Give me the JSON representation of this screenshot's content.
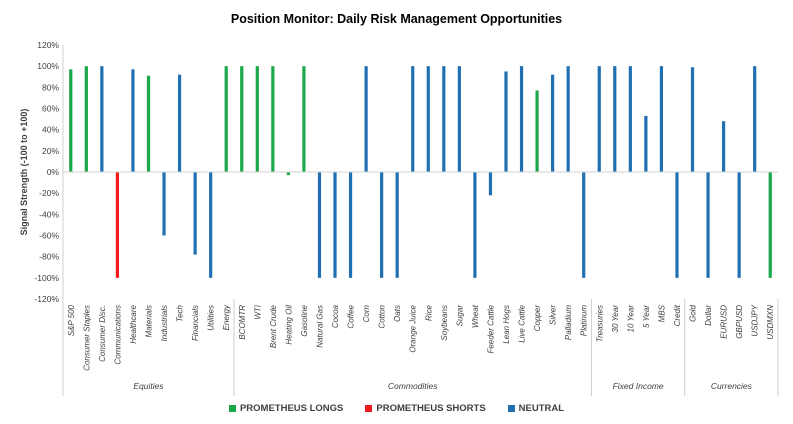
{
  "chart_data": {
    "type": "bar",
    "title": "Position Monitor: Daily Risk Management Opportunities",
    "ylabel": "Signal Strength (-100 to +100)",
    "ylim": [
      -120,
      120
    ],
    "yticks": [
      -120,
      -100,
      -80,
      -60,
      -40,
      -20,
      0,
      20,
      40,
      60,
      80,
      100,
      120
    ],
    "ytick_suffix": "%",
    "grid": false,
    "legend_position": "bottom",
    "colors": {
      "longs": "#1ba84a",
      "shorts": "#ee1c1c",
      "neutral": "#1f6fb2"
    },
    "series": [
      {
        "name": "PROMETHEUS LONGS",
        "key": "longs"
      },
      {
        "name": "PROMETHEUS SHORTS",
        "key": "shorts"
      },
      {
        "name": "NEUTRAL",
        "key": "neutral"
      }
    ],
    "groups": [
      {
        "label": "Equities",
        "start": 0,
        "end": 10
      },
      {
        "label": "Commodities",
        "start": 11,
        "end": 33
      },
      {
        "label": "Fixed Income",
        "start": 34,
        "end": 39
      },
      {
        "label": "Currencies",
        "start": 40,
        "end": 45
      }
    ],
    "categories": [
      "S&P 500",
      "Consumer Staples",
      "Consumer Disc.",
      "Communications",
      "Healthcare",
      "Materials",
      "Industrials",
      "Tech",
      "Financials",
      "Utilities",
      "Energy",
      "BCOMTR",
      "WTI",
      "Brent Crude",
      "Heating Oil",
      "Gasoline",
      "Natural Gas",
      "Cocoa",
      "Coffee",
      "Corn",
      "Cotton",
      "Oats",
      "Orange Juice",
      "Rice",
      "Soybeans",
      "Sugar",
      "Wheat",
      "Feeder Cattle",
      "Lean Hogs",
      "Live Cattle",
      "Copper",
      "Silver",
      "Palladium",
      "Platinum",
      "Treasuries",
      "30 Year",
      "10 Year",
      "5 Year",
      "MBS",
      "Credit",
      "Gold",
      "Dollar",
      "EURUSD",
      "GBPUSD",
      "USDJPY",
      "USDMXN"
    ],
    "values": [
      97,
      100,
      100,
      -100,
      97,
      91,
      -60,
      92,
      -78,
      -100,
      100,
      100,
      100,
      100,
      -3,
      100,
      -100,
      -100,
      -100,
      100,
      -100,
      -100,
      100,
      100,
      100,
      100,
      -100,
      -22,
      95,
      100,
      77,
      92,
      100,
      -100,
      100,
      100,
      100,
      53,
      100,
      -100,
      99,
      -100,
      48,
      -100,
      100,
      -100
    ],
    "signals": [
      "longs",
      "longs",
      "neutral",
      "shorts",
      "neutral",
      "longs",
      "neutral",
      "neutral",
      "neutral",
      "neutral",
      "longs",
      "longs",
      "longs",
      "longs",
      "longs",
      "longs",
      "neutral",
      "neutral",
      "neutral",
      "neutral",
      "neutral",
      "neutral",
      "neutral",
      "neutral",
      "neutral",
      "neutral",
      "neutral",
      "neutral",
      "neutral",
      "neutral",
      "longs",
      "neutral",
      "neutral",
      "neutral",
      "neutral",
      "neutral",
      "neutral",
      "neutral",
      "neutral",
      "neutral",
      "neutral",
      "neutral",
      "neutral",
      "neutral",
      "neutral",
      "longs"
    ]
  }
}
